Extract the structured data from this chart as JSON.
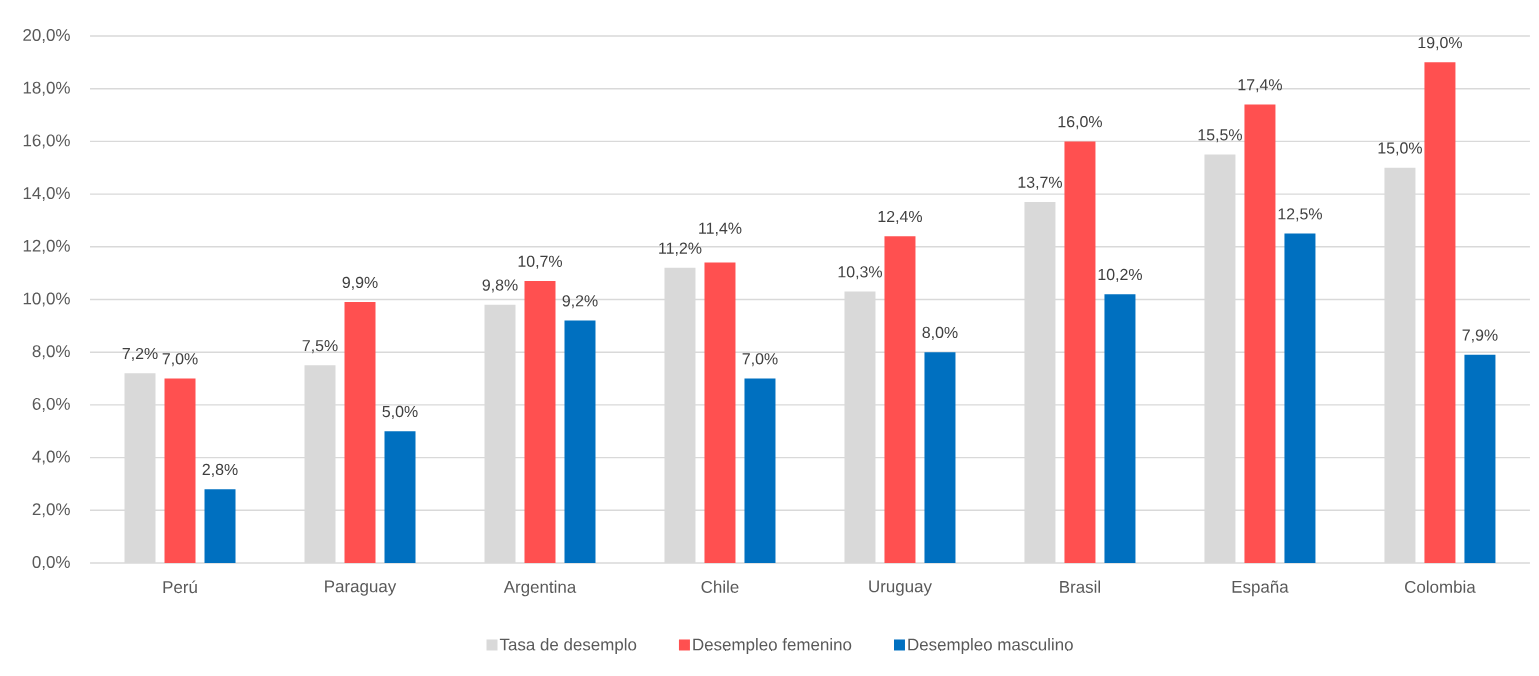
{
  "chart_data": {
    "type": "bar",
    "categories": [
      "Perú",
      "Paraguay",
      "Argentina",
      "Chile",
      "Uruguay",
      "Brasil",
      "España",
      "Colombia"
    ],
    "series": [
      {
        "name": "Tasa de desemplo",
        "color": "#d9d9d9",
        "values": [
          7.2,
          7.5,
          9.8,
          11.2,
          10.3,
          13.7,
          15.5,
          15.0
        ],
        "value_labels": [
          "7,2%",
          "7,5%",
          "9,8%",
          "11,2%",
          "10,3%",
          "13,7%",
          "15,5%",
          "15,0%"
        ]
      },
      {
        "name": "Desempleo femenino",
        "color": "#ff5050",
        "values": [
          7.0,
          9.9,
          10.7,
          11.4,
          12.4,
          16.0,
          17.4,
          19.0
        ],
        "value_labels": [
          "7,0%",
          "9,9%",
          "10,7%",
          "11,4%",
          "12,4%",
          "16,0%",
          "17,4%",
          "19,0%"
        ]
      },
      {
        "name": "Desempleo masculino",
        "color": "#0070c0",
        "values": [
          2.8,
          5.0,
          9.2,
          7.0,
          8.0,
          10.2,
          12.5,
          7.9
        ],
        "value_labels": [
          "2,8%",
          "5,0%",
          "9,2%",
          "7,0%",
          "8,0%",
          "10,2%",
          "12,5%",
          "7,9%"
        ]
      }
    ],
    "ylim": [
      0,
      20
    ],
    "yticks": [
      {
        "value": 0,
        "label": "0,0%"
      },
      {
        "value": 2,
        "label": "2,0%"
      },
      {
        "value": 4,
        "label": "4,0%"
      },
      {
        "value": 6,
        "label": "6,0%"
      },
      {
        "value": 8,
        "label": "8,0%"
      },
      {
        "value": 10,
        "label": "10,0%"
      },
      {
        "value": 12,
        "label": "12,0%"
      },
      {
        "value": 14,
        "label": "14,0%"
      },
      {
        "value": 16,
        "label": "16,0%"
      },
      {
        "value": 18,
        "label": "18,0%"
      },
      {
        "value": 20,
        "label": "20,0%"
      }
    ],
    "grid": "y",
    "legend": "bottom"
  }
}
